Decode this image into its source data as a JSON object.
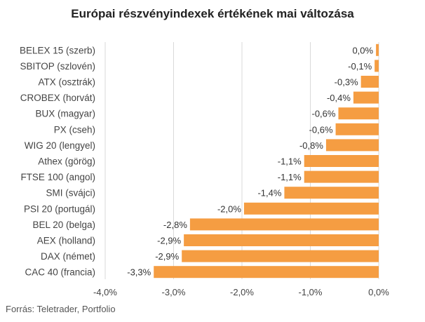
{
  "chart_data": {
    "type": "bar",
    "orientation": "horizontal",
    "title": "Európai részvényindexek értékének mai változása",
    "categories": [
      "BELEX 15 (szerb)",
      "SBITOP (szlovén)",
      "ATX (osztrák)",
      "CROBEX (horvát)",
      "BUX (magyar)",
      "PX (cseh)",
      "WIG 20 (lengyel)",
      "Athex (görög)",
      "FTSE 100 (angol)",
      "SMI (svájci)",
      "PSI 20 (portugál)",
      "BEL 20 (belga)",
      "AEX (holland)",
      "DAX (német)",
      "CAC 40 (francia)"
    ],
    "values": [
      -0.04,
      -0.06,
      -0.26,
      -0.37,
      -0.59,
      -0.63,
      -0.77,
      -1.09,
      -1.09,
      -1.38,
      -1.97,
      -2.76,
      -2.85,
      -2.88,
      -3.29
    ],
    "value_labels": [
      "0,0%",
      "-0,1%",
      "-0,3%",
      "-0,4%",
      "-0,6%",
      "-0,6%",
      "-0,8%",
      "-1,1%",
      "-1,1%",
      "-1,4%",
      "-2,0%",
      "-2,8%",
      "-2,9%",
      "-2,9%",
      "-3,3%"
    ],
    "xlim": [
      -4.0,
      0.0
    ],
    "xticks": [
      -4.0,
      -3.0,
      -2.0,
      -1.0,
      0.0
    ],
    "xtick_labels": [
      "-4,0%",
      "-3,0%",
      "-2,0%",
      "-1,0%",
      "0,0%"
    ],
    "grid": true,
    "legend": "none",
    "bar_color": "#F59D42",
    "source": "Forrás: Teletrader, Portfolio"
  }
}
